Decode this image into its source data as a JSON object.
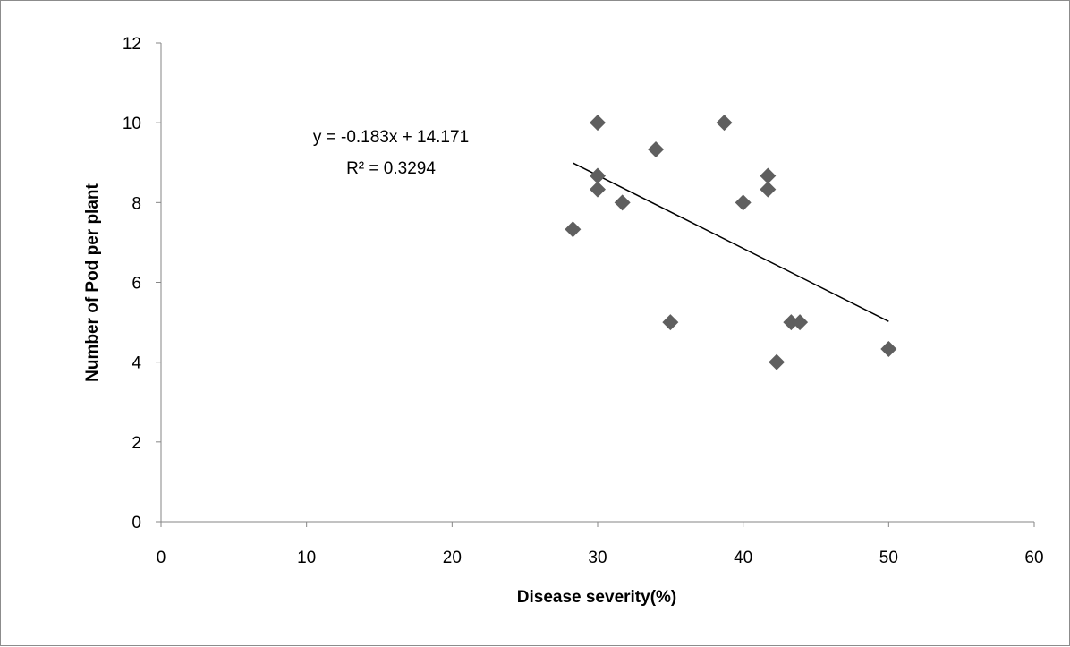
{
  "chart_data": {
    "type": "scatter",
    "title": "",
    "xlabel": "Disease severity(%)",
    "ylabel": "Number of Pod per plant",
    "xlim": [
      0,
      60
    ],
    "ylim": [
      0,
      12
    ],
    "xticks": [
      0,
      10,
      20,
      30,
      40,
      50,
      60
    ],
    "yticks": [
      0,
      2,
      4,
      6,
      8,
      10,
      12
    ],
    "grid": false,
    "legend": "none",
    "marker": "diamond",
    "marker_color": "#5f5f5f",
    "points": [
      {
        "x": 28.3,
        "y": 7.33
      },
      {
        "x": 30.0,
        "y": 10.0
      },
      {
        "x": 30.0,
        "y": 8.67
      },
      {
        "x": 30.0,
        "y": 8.33
      },
      {
        "x": 31.7,
        "y": 8.0
      },
      {
        "x": 34.0,
        "y": 9.33
      },
      {
        "x": 35.0,
        "y": 5.0
      },
      {
        "x": 38.7,
        "y": 10.0
      },
      {
        "x": 40.0,
        "y": 8.0
      },
      {
        "x": 41.7,
        "y": 8.67
      },
      {
        "x": 41.7,
        "y": 8.33
      },
      {
        "x": 42.3,
        "y": 4.0
      },
      {
        "x": 43.3,
        "y": 5.0
      },
      {
        "x": 43.9,
        "y": 5.0
      },
      {
        "x": 50.0,
        "y": 4.33
      }
    ],
    "trendline": {
      "slope": -0.183,
      "intercept": 14.171,
      "x_start": 28.3,
      "x_end": 50.0,
      "color": "#000000",
      "equation": "y = -0.183x + 14.171",
      "r_squared": "R² = 0.3294"
    }
  }
}
